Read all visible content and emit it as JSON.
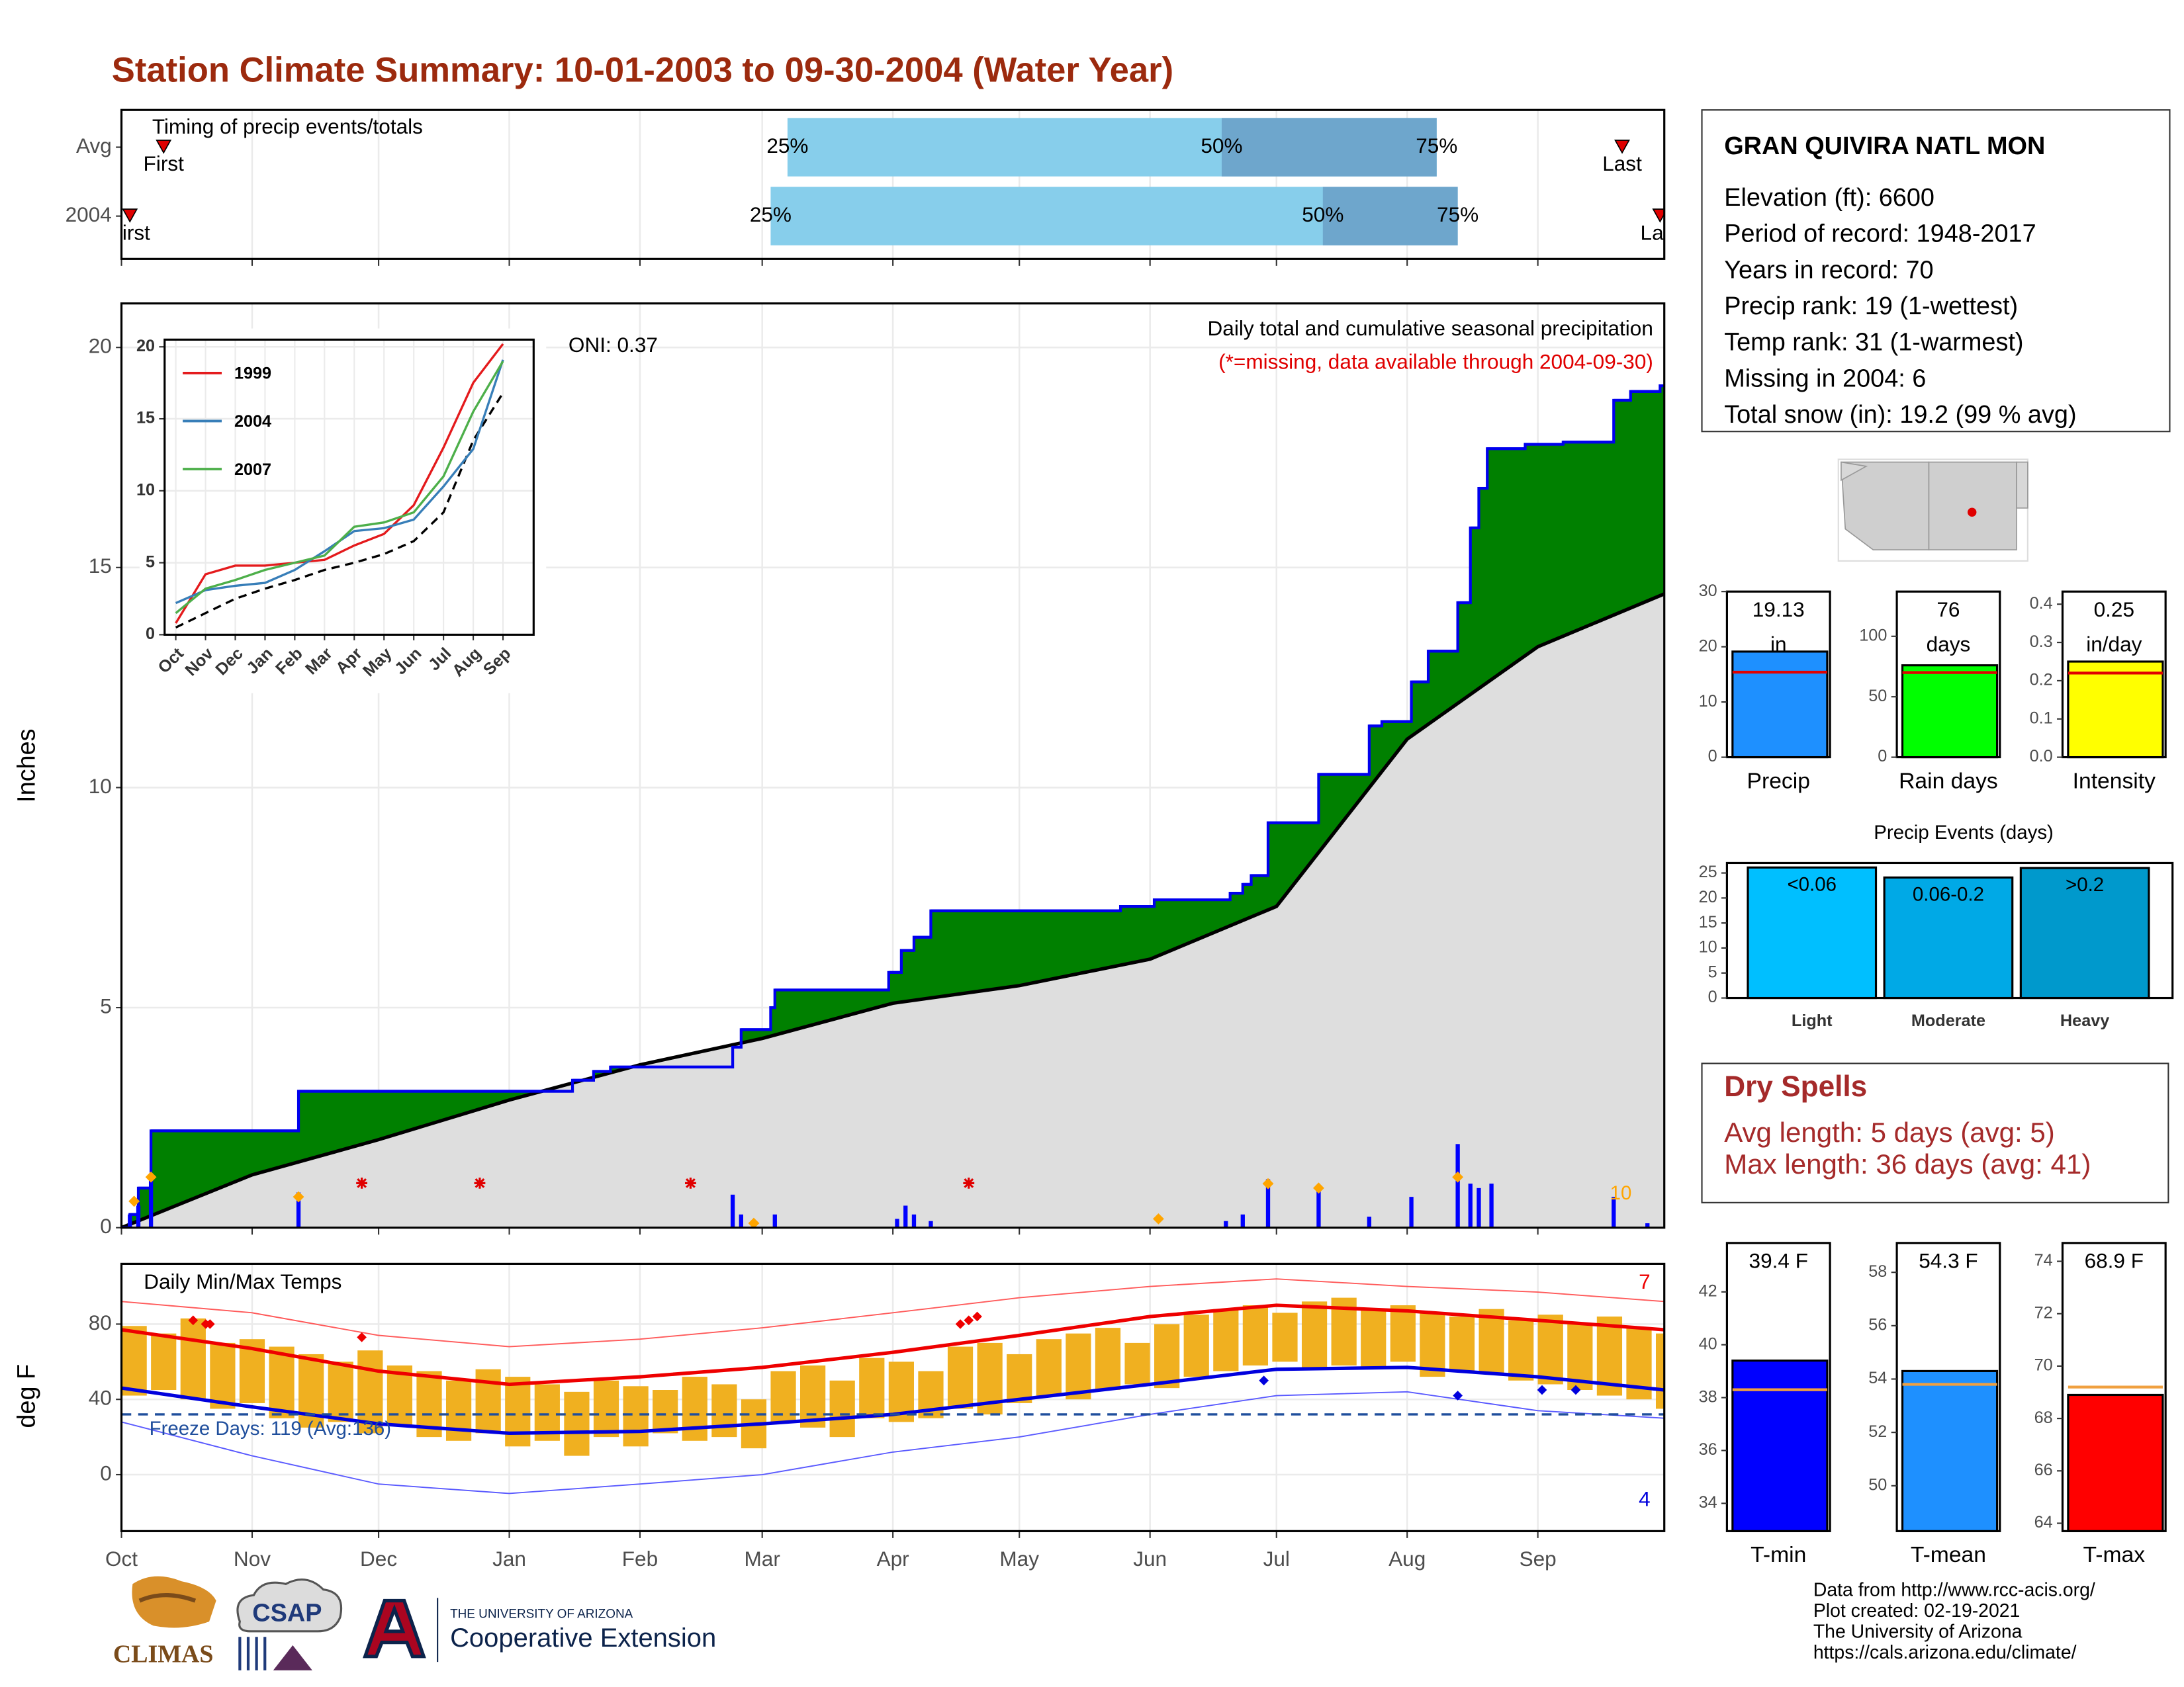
{
  "title": "Station Climate Summary: 10-01-2003 to 09-30-2004 (Water Year)",
  "station": {
    "name": "GRAN QUIVIRA NATL MON",
    "lines": [
      "Elevation (ft): 6600",
      "Period of record: 1948-2017",
      "Years in record: 70",
      "Precip rank: 19 (1-wettest)",
      "Temp rank: 31 (1-warmest)",
      "Missing in 2004: 6",
      "Total snow (in): 19.2 (99 % avg)"
    ]
  },
  "dry_spells": {
    "title": "Dry Spells",
    "lines": [
      "Avg length: 5 days (avg: 5)",
      "Max length: 36 days (avg: 41)"
    ]
  },
  "footer": {
    "logos": [
      "CLIMAS",
      "CSAP",
      "THE UNIVERSITY OF ARIZONA",
      "Cooperative Extension"
    ],
    "credits": [
      "Data from http://www.rcc-acis.org/",
      "Plot created: 02-19-2021",
      "The University of Arizona",
      "https://cals.arizona.edu/climate/"
    ]
  },
  "chart_data": [
    {
      "type": "timeline",
      "title": "Timing of precip events/totals",
      "xlim": [
        0,
        366
      ],
      "xticks": [
        0,
        31,
        61,
        92,
        123,
        152,
        183,
        213,
        244,
        274,
        305,
        336
      ],
      "grid": true,
      "marker_labels": [
        "First",
        "25%",
        "50%",
        "75%",
        "Last"
      ],
      "colors": [
        "#e00000",
        "#87ceeb",
        "#6ea6cc"
      ],
      "series": [
        {
          "name": "Avg",
          "values": [
            10,
            158,
            261,
            312,
            356
          ]
        },
        {
          "name": "2004",
          "values": [
            2,
            154,
            285,
            317,
            365
          ]
        }
      ]
    },
    {
      "type": "step",
      "ylabel": "Inches",
      "xlim": [
        0,
        366
      ],
      "xticks": [
        0,
        31,
        61,
        92,
        123,
        152,
        183,
        213,
        244,
        274,
        305,
        336
      ],
      "ylim": [
        0,
        21
      ],
      "yticks": [
        0,
        5,
        10,
        15,
        20
      ],
      "grid": true,
      "annotations": [
        {
          "text": "Daily total and cumulative seasonal precipitation",
          "color": "#000000"
        },
        {
          "text": "(*=missing, data available through 2004-09-30)",
          "color": "#e00000"
        }
      ],
      "oni_label": "ONI: 0.37",
      "count_label": "10",
      "cumulative": {
        "color": "#0000ee",
        "fill": "#008000",
        "x": [
          0,
          2,
          4,
          7,
          42,
          107,
          112,
          116,
          145,
          147,
          154,
          155,
          182,
          185,
          188,
          192,
          237,
          245,
          263,
          266,
          268,
          272,
          284,
          296,
          299,
          306,
          310,
          317,
          320,
          322,
          324,
          333,
          342,
          354,
          358,
          365
        ],
        "values": [
          0,
          0.3,
          0.9,
          2.2,
          3.1,
          3.35,
          3.55,
          3.65,
          4.1,
          4.5,
          5.0,
          5.4,
          5.8,
          6.3,
          6.6,
          7.2,
          7.3,
          7.45,
          7.6,
          7.8,
          8.0,
          9.2,
          10.3,
          11.4,
          11.5,
          12.4,
          13.1,
          14.2,
          15.9,
          16.8,
          17.7,
          17.8,
          17.85,
          18.8,
          19.0,
          19.13
        ]
      },
      "average": {
        "color": "#000000",
        "fill": "#dedede",
        "x": [
          0,
          31,
          61,
          92,
          123,
          152,
          183,
          213,
          244,
          274,
          305,
          336,
          366
        ],
        "values": [
          0,
          1.2,
          2.0,
          2.9,
          3.7,
          4.3,
          5.1,
          5.5,
          6.1,
          7.3,
          11.1,
          13.2,
          14.4
        ]
      },
      "daily": {
        "color": "#0000ff",
        "x": [
          2,
          4,
          7,
          42,
          145,
          147,
          150,
          155,
          184,
          186,
          188,
          192,
          262,
          266,
          272,
          284,
          296,
          306,
          317,
          320,
          322,
          325,
          354,
          362
        ],
        "values": [
          0.3,
          0.5,
          1.1,
          0.8,
          0.75,
          0.3,
          0.1,
          0.3,
          0.2,
          0.5,
          0.3,
          0.15,
          0.15,
          0.3,
          1.1,
          0.9,
          0.25,
          0.7,
          1.9,
          1.0,
          0.9,
          1.0,
          0.7,
          0.1
        ]
      },
      "snow": {
        "color": "#ffa500",
        "x": [
          3,
          7,
          42,
          150,
          246,
          272,
          284,
          317
        ],
        "values": [
          0.6,
          1.15,
          0.7,
          0.1,
          0.2,
          1.0,
          0.9,
          1.15
        ]
      },
      "missing_x": [
        57,
        85,
        135,
        201
      ],
      "missing_color": "#e00000"
    },
    {
      "type": "line",
      "categories": [
        "Oct",
        "Nov",
        "Dec",
        "Jan",
        "Feb",
        "Mar",
        "Apr",
        "May",
        "Jun",
        "Jul",
        "Aug",
        "Sep"
      ],
      "ylim": [
        0,
        20.5
      ],
      "yticks": [
        0,
        5,
        10,
        15,
        20
      ],
      "grid": true,
      "series": [
        {
          "name": "1999",
          "color": "#e41a1c",
          "values": [
            0.8,
            4.2,
            4.8,
            4.8,
            5.0,
            5.2,
            6.2,
            7.0,
            9.0,
            13.0,
            17.5,
            20.2
          ]
        },
        {
          "name": "2004",
          "color": "#377eb8",
          "values": [
            2.2,
            3.1,
            3.4,
            3.6,
            4.5,
            5.8,
            7.2,
            7.4,
            8.0,
            10.3,
            12.9,
            19.1
          ]
        },
        {
          "name": "2007",
          "color": "#4daf4a",
          "values": [
            1.5,
            3.2,
            3.8,
            4.5,
            5.0,
            5.5,
            7.5,
            7.8,
            8.5,
            11.0,
            15.5,
            19.0
          ]
        }
      ],
      "average": {
        "color": "#000000",
        "values": [
          0.5,
          1.5,
          2.5,
          3.2,
          3.8,
          4.5,
          5.0,
          5.6,
          6.5,
          8.5,
          13.5,
          16.8
        ]
      }
    },
    {
      "type": "bar",
      "categories": [
        "Precip"
      ],
      "values": [
        19.13
      ],
      "value_labels": [
        "19.13 in"
      ],
      "color": "#1e90ff",
      "average": 15.4,
      "average_color": "#e00000",
      "ylim": [
        0,
        30
      ],
      "yticks": [
        0,
        10,
        20,
        30
      ]
    },
    {
      "type": "bar",
      "categories": [
        "Rain days"
      ],
      "values": [
        76
      ],
      "value_labels": [
        "76 days"
      ],
      "color": "#00ff00",
      "average": 70,
      "average_color": "#e00000",
      "ylim": [
        0,
        137
      ],
      "yticks": [
        0,
        50,
        100
      ]
    },
    {
      "type": "bar",
      "categories": [
        "Intensity"
      ],
      "values": [
        0.25
      ],
      "value_labels": [
        "0.25 in/day"
      ],
      "color": "#ffff00",
      "average": 0.22,
      "average_color": "#e00000",
      "ylim": [
        0,
        0.433
      ],
      "yticks": [
        {
          "value": 0,
          "label": "0.0"
        },
        0.1,
        0.2,
        0.3,
        0.4
      ]
    },
    {
      "type": "bar",
      "title": "Precip Events (days)",
      "categories": [
        "Light",
        "Moderate",
        "Heavy"
      ],
      "values": [
        26.1,
        24.1,
        26.0
      ],
      "bar_labels": [
        "<0.06",
        "0.06-0.2",
        ">0.2"
      ],
      "colors": [
        "#00bfff",
        "#00a9e6",
        "#0099cc"
      ],
      "ylim": [
        0,
        27
      ],
      "yticks": [
        0,
        5,
        10,
        15,
        20,
        25
      ]
    },
    {
      "type": "temperature",
      "title": "Daily Min/Max Temps",
      "ylabel": "deg F",
      "xlim": [
        0,
        366
      ],
      "xticks": [
        {
          "value": 0,
          "label": "Oct"
        },
        {
          "value": 31,
          "label": "Nov"
        },
        {
          "value": 61,
          "label": "Dec"
        },
        {
          "value": 92,
          "label": "Jan"
        },
        {
          "value": 123,
          "label": "Feb"
        },
        {
          "value": 152,
          "label": "Mar"
        },
        {
          "value": 183,
          "label": "Apr"
        },
        {
          "value": 213,
          "label": "May"
        },
        {
          "value": 244,
          "label": "Jun"
        },
        {
          "value": 274,
          "label": "Jul"
        },
        {
          "value": 305,
          "label": "Aug"
        },
        {
          "value": 336,
          "label": "Sep"
        }
      ],
      "ylim": [
        -30,
        112
      ],
      "yticks": [
        0,
        40,
        80
      ],
      "grid": true,
      "freeze_line": 32,
      "freeze_label": "Freeze Days: 119 (Avg:136)",
      "record_high_count_label": "7",
      "record_low_count_label": "4",
      "bars": {
        "color": "#f0b020",
        "x": [
          0,
          7,
          14,
          21,
          28,
          35,
          42,
          49,
          56,
          63,
          70,
          77,
          84,
          91,
          98,
          105,
          112,
          119,
          126,
          133,
          140,
          147,
          154,
          161,
          168,
          175,
          182,
          189,
          196,
          203,
          210,
          217,
          224,
          231,
          238,
          245,
          252,
          259,
          266,
          273,
          280,
          287,
          294,
          301,
          308,
          315,
          322,
          329,
          336,
          343,
          350,
          357,
          364
        ],
        "max": [
          79,
          75,
          83,
          70,
          72,
          68,
          64,
          60,
          66,
          58,
          55,
          50,
          56,
          52,
          48,
          44,
          50,
          47,
          45,
          52,
          48,
          40,
          55,
          58,
          50,
          62,
          60,
          55,
          68,
          70,
          64,
          72,
          75,
          78,
          70,
          80,
          85,
          88,
          90,
          86,
          92,
          94,
          88,
          90,
          86,
          84,
          88,
          82,
          85,
          80,
          84,
          78,
          75
        ],
        "min": [
          42,
          45,
          40,
          35,
          38,
          30,
          25,
          28,
          22,
          26,
          20,
          18,
          22,
          15,
          18,
          10,
          20,
          15,
          22,
          18,
          20,
          14,
          28,
          25,
          20,
          30,
          28,
          30,
          35,
          32,
          38,
          42,
          40,
          45,
          48,
          46,
          52,
          55,
          58,
          60,
          56,
          58,
          56,
          60,
          52,
          55,
          54,
          50,
          48,
          45,
          42,
          40,
          35
        ]
      },
      "avg_max": {
        "color": "#ee0000",
        "x": [
          0,
          31,
          61,
          92,
          123,
          152,
          183,
          213,
          244,
          274,
          305,
          336,
          366
        ],
        "values": [
          77,
          67,
          55,
          48,
          52,
          57,
          65,
          74,
          84,
          90,
          87,
          82,
          77
        ]
      },
      "avg_min": {
        "color": "#0000dd",
        "x": [
          0,
          31,
          61,
          92,
          123,
          152,
          183,
          213,
          244,
          274,
          305,
          336,
          366
        ],
        "values": [
          46,
          36,
          27,
          22,
          23,
          27,
          32,
          40,
          48,
          56,
          57,
          52,
          45
        ]
      },
      "record_high": {
        "color": "#ff5a5a",
        "x": [
          0,
          31,
          61,
          92,
          123,
          152,
          183,
          213,
          244,
          274,
          305,
          336,
          366
        ],
        "values": [
          92,
          86,
          74,
          68,
          72,
          78,
          86,
          94,
          100,
          104,
          100,
          97,
          92
        ]
      },
      "record_low": {
        "color": "#5a5aff",
        "x": [
          0,
          31,
          61,
          92,
          123,
          152,
          183,
          213,
          244,
          274,
          305,
          336,
          366
        ],
        "values": [
          28,
          10,
          -5,
          -10,
          -5,
          0,
          12,
          20,
          32,
          42,
          44,
          34,
          30
        ]
      },
      "record_high_days": {
        "color": "#ee0000",
        "x": [
          17,
          20,
          21,
          57,
          199,
          201,
          203
        ],
        "values": [
          82,
          80,
          80,
          73,
          80,
          82,
          84
        ]
      },
      "record_low_days": {
        "color": "#0000dd",
        "x": [
          271,
          317,
          337,
          345
        ],
        "values": [
          50,
          42,
          45,
          45
        ]
      },
      "freeze_color": "#1f4e9c"
    },
    {
      "type": "bar",
      "categories": [
        "T-min"
      ],
      "values": [
        39.4
      ],
      "value_labels": [
        "39.4 F"
      ],
      "color": "#0000ff",
      "average": 38.3,
      "average_color": "#f0a040",
      "ylim": [
        32.95,
        43.85
      ],
      "yticks": [
        34,
        36,
        38,
        40,
        42
      ]
    },
    {
      "type": "bar",
      "categories": [
        "T-mean"
      ],
      "values": [
        54.3
      ],
      "value_labels": [
        "54.3 F"
      ],
      "color": "#1e90ff",
      "average": 53.8,
      "average_color": "#f0a040",
      "ylim": [
        48.3,
        59.1
      ],
      "yticks": [
        50,
        52,
        54,
        56,
        58
      ]
    },
    {
      "type": "bar",
      "categories": [
        "T-max"
      ],
      "values": [
        68.9
      ],
      "value_labels": [
        "68.9 F"
      ],
      "color": "#ff0000",
      "average": 69.2,
      "average_color": "#f0a040",
      "ylim": [
        63.7,
        74.7
      ],
      "yticks": [
        64,
        66,
        68,
        70,
        72,
        74
      ]
    }
  ]
}
